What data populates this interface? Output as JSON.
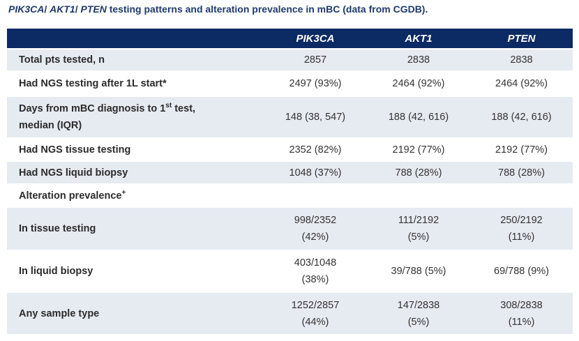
{
  "title": {
    "genes": [
      "PIK3CA",
      "AKT1",
      "PTEN"
    ],
    "rest": " testing patterns and alteration prevalence in mBC (data from CGDB)."
  },
  "columns": [
    "",
    "PIK3CA",
    "AKT1",
    "PTEN"
  ],
  "rows": [
    {
      "label": "Total pts tested, n",
      "cells": [
        "2857",
        "2838",
        "2838"
      ]
    },
    {
      "label": "Had NGS testing after 1L start*",
      "cells": [
        "2497 (93%)",
        "2464 (92%)",
        "2464 (92%)"
      ]
    },
    {
      "label_a": "Days from mBC diagnosis to 1",
      "label_sup": "st",
      "label_b": " test,",
      "label_c": "median (IQR)",
      "cells": [
        "148 (38, 547)",
        "188 (42, 616)",
        "188 (42, 616)"
      ]
    },
    {
      "label": "Had NGS tissue testing",
      "cells": [
        "2352 (82%)",
        "2192 (77%)",
        "2192 (77%)"
      ]
    },
    {
      "label": "Had NGS liquid biopsy",
      "cells": [
        "1048 (37%)",
        "788 (28%)",
        "788 (28%)"
      ]
    },
    {
      "label": "Alteration prevalence",
      "label_sup": "+"
    },
    {
      "label": "In tissue testing",
      "cells": [
        [
          "998/2352",
          "(42%)"
        ],
        [
          "111/2192",
          "(5%)"
        ],
        [
          "250/2192",
          "(11%)"
        ]
      ]
    },
    {
      "label": "In liquid biopsy",
      "cells": [
        [
          "403/1048",
          "(38%)"
        ],
        "39/788 (5%)",
        "69/788 (9%)"
      ]
    },
    {
      "label": "Any sample type",
      "cells": [
        [
          "1252/2857",
          "(44%)"
        ],
        [
          "147/2838",
          "(5%)"
        ],
        [
          "308/2838",
          "(11%)"
        ]
      ]
    }
  ]
}
